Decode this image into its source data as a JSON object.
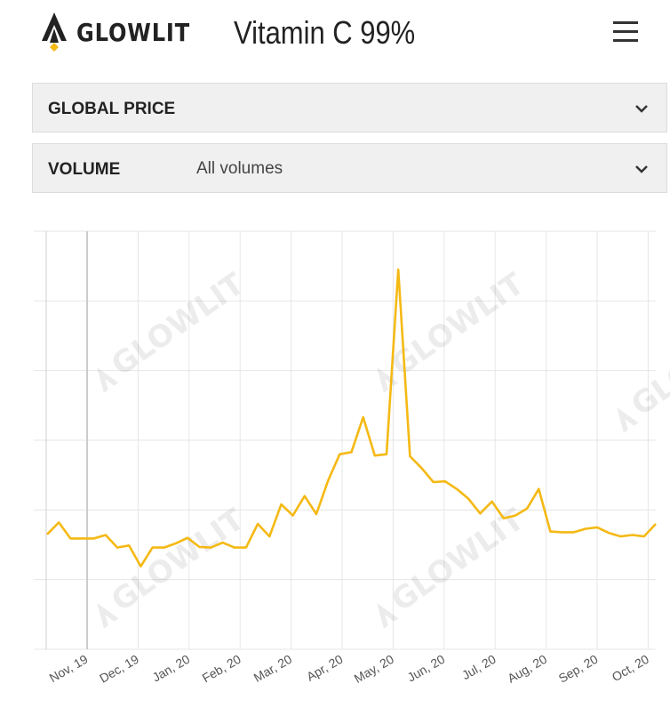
{
  "header": {
    "brand": "GLOWLIT",
    "product_title": "Vitamin C 99%",
    "logo_icon": "glowlit-logo-icon",
    "menu_icon": "hamburger-menu-icon"
  },
  "filters": {
    "global_price": {
      "label": "GLOBAL PRICE",
      "icon": "chevron-down-icon"
    },
    "volume": {
      "label": "VOLUME",
      "value": "All volumes",
      "icon": "chevron-down-icon"
    }
  },
  "chart_data": {
    "type": "line",
    "title": "",
    "xlabel": "",
    "ylabel": "",
    "y_ticks_labeled": false,
    "grid": true,
    "line_color": "#f5b914",
    "watermark": "GLOWLIT",
    "x_tick_labels": [
      "Nov, 19",
      "Dec, 19",
      "Jan, 20",
      "Feb, 20",
      "Mar, 20",
      "Apr, 20",
      "May, 20",
      "Jun, 20",
      "Jul, 20",
      "Aug, 20",
      "Sep, 20",
      "Oct, 20"
    ],
    "ylim": [
      0,
      6
    ],
    "series": [
      {
        "values": [
          1.65,
          1.82,
          1.59,
          1.59,
          1.59,
          1.64,
          1.46,
          1.49,
          1.19,
          1.46,
          1.46,
          1.52,
          1.6,
          1.47,
          1.46,
          1.53,
          1.46,
          1.46,
          1.8,
          1.62,
          2.08,
          1.92,
          2.2,
          1.94,
          2.42,
          2.8,
          2.83,
          3.33,
          2.78,
          2.8,
          5.45,
          2.77,
          2.6,
          2.4,
          2.41,
          2.3,
          2.16,
          1.95,
          2.12,
          1.88,
          1.92,
          2.02,
          2.3,
          1.69,
          1.68,
          1.68,
          1.73,
          1.75,
          1.67,
          1.62,
          1.64,
          1.62,
          1.8
        ]
      }
    ]
  }
}
